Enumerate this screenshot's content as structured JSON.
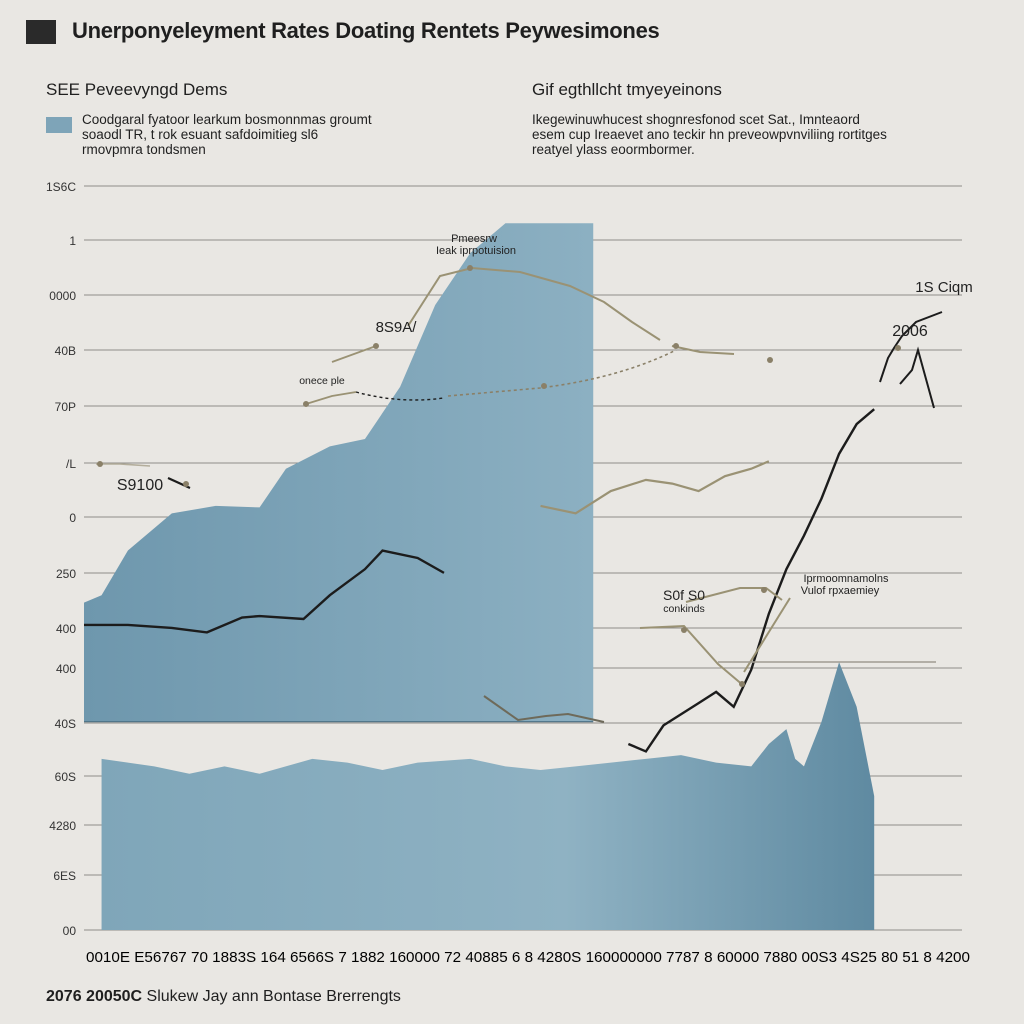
{
  "header": {
    "title": "Unerponyeleyment Rates Doating Rentets Peywesimones"
  },
  "left_panel": {
    "heading": "SEE Peveevyngd Dems",
    "description": "Coodgaral fyatoor learkum bosmonnmas groumt\nsoaodl TR, t rok esuant safdoimitieg sl6\nrmovpmra tondsmen"
  },
  "right_panel": {
    "heading": "Gif egthllcht tmyeyeinons",
    "description": "Ikegewinuwhucest shognresfonod scet Sat., Imnteaord\nesem cup Ireaevet ano teckir hn preveowpvnviliing rortitges\nreatyel ylass eoormbormer."
  },
  "footer": {
    "bold": "2076 20050C",
    "text": "Slukew Jay ann Bontase Brerrengts"
  },
  "colors": {
    "area_fill": "#7ea4b8",
    "area_fill_light": "#9dbccb",
    "dark_line": "#1c1c1c",
    "tan_line": "#9a9274",
    "grid": "#8e8c88",
    "background": "#e9e7e3"
  },
  "chart_data": {
    "type": "area",
    "y_tick_labels": [
      "1S6C",
      "1",
      "0000",
      "40B",
      "70P",
      "/L",
      "0",
      "250",
      "400",
      "400",
      "40S",
      "60S",
      "4280",
      "6ES",
      "00"
    ],
    "x_tick_labels": "0010E E56767 70 1883S 164 6566S 7 1882 160000 72 40885 6 8 4280S 160000000 7787 8 60000 7880 00S3 4S25 80 51 8 4200",
    "grid": true,
    "annotations": [
      "Pmeesrw",
      "Ieak iprpotuision",
      "8S9A/",
      "onece ple",
      "S9100",
      "1S Ciqm",
      "2006",
      "S0f S0",
      "conkinds",
      "Iprmoomnamolns",
      "Vulof rpxaemiey"
    ],
    "series": [
      {
        "values": [
          [
            0,
            44
          ],
          [
            2,
            45
          ],
          [
            5,
            51
          ],
          [
            10,
            56
          ],
          [
            15,
            57
          ],
          [
            20,
            56.8
          ],
          [
            23,
            62
          ],
          [
            28,
            65
          ],
          [
            32,
            66
          ],
          [
            36,
            73
          ],
          [
            40,
            84
          ],
          [
            44,
            91
          ],
          [
            48,
            95
          ],
          [
            52,
            95
          ],
          [
            58,
            95
          ]
        ]
      },
      {
        "values": [
          [
            0,
            41
          ],
          [
            5,
            41
          ],
          [
            10,
            40.6
          ],
          [
            14,
            40
          ],
          [
            18,
            42
          ],
          [
            20,
            42.2
          ],
          [
            25,
            41.8
          ],
          [
            28,
            45
          ],
          [
            32,
            48.5
          ],
          [
            34,
            51
          ],
          [
            38,
            50
          ],
          [
            41,
            48
          ]
        ]
      },
      {
        "values": [
          [
            62,
            25
          ],
          [
            64,
            24
          ],
          [
            66,
            27.5
          ],
          [
            68,
            29
          ],
          [
            70,
            30.5
          ],
          [
            72,
            32
          ],
          [
            74,
            30
          ],
          [
            76,
            35
          ],
          [
            78,
            42.5
          ],
          [
            80,
            48.5
          ],
          [
            82,
            53
          ],
          [
            84,
            58
          ],
          [
            86,
            64
          ],
          [
            88,
            68
          ],
          [
            90,
            70
          ]
        ]
      },
      {
        "values": [
          [
            52,
            57
          ],
          [
            56,
            56
          ],
          [
            60,
            59
          ],
          [
            64,
            60.5
          ],
          [
            67,
            60
          ],
          [
            70,
            59
          ],
          [
            73,
            61
          ],
          [
            76,
            62
          ],
          [
            78,
            63
          ]
        ]
      },
      {
        "values": [
          [
            2,
            23
          ],
          [
            8,
            22
          ],
          [
            12,
            21
          ],
          [
            16,
            22
          ],
          [
            20,
            21
          ],
          [
            26,
            23
          ],
          [
            30,
            22.5
          ],
          [
            34,
            21.5
          ],
          [
            38,
            22.5
          ],
          [
            44,
            23
          ],
          [
            48,
            22
          ],
          [
            52,
            21.5
          ],
          [
            56,
            22
          ],
          [
            60,
            22.5
          ],
          [
            64,
            23
          ],
          [
            68,
            23.5
          ],
          [
            72,
            22.5
          ],
          [
            76,
            22
          ],
          [
            78,
            25
          ],
          [
            80,
            27
          ],
          [
            81,
            23
          ],
          [
            82,
            22
          ],
          [
            84,
            28
          ],
          [
            86,
            36
          ],
          [
            88,
            30
          ],
          [
            90,
            18
          ]
        ]
      }
    ]
  }
}
